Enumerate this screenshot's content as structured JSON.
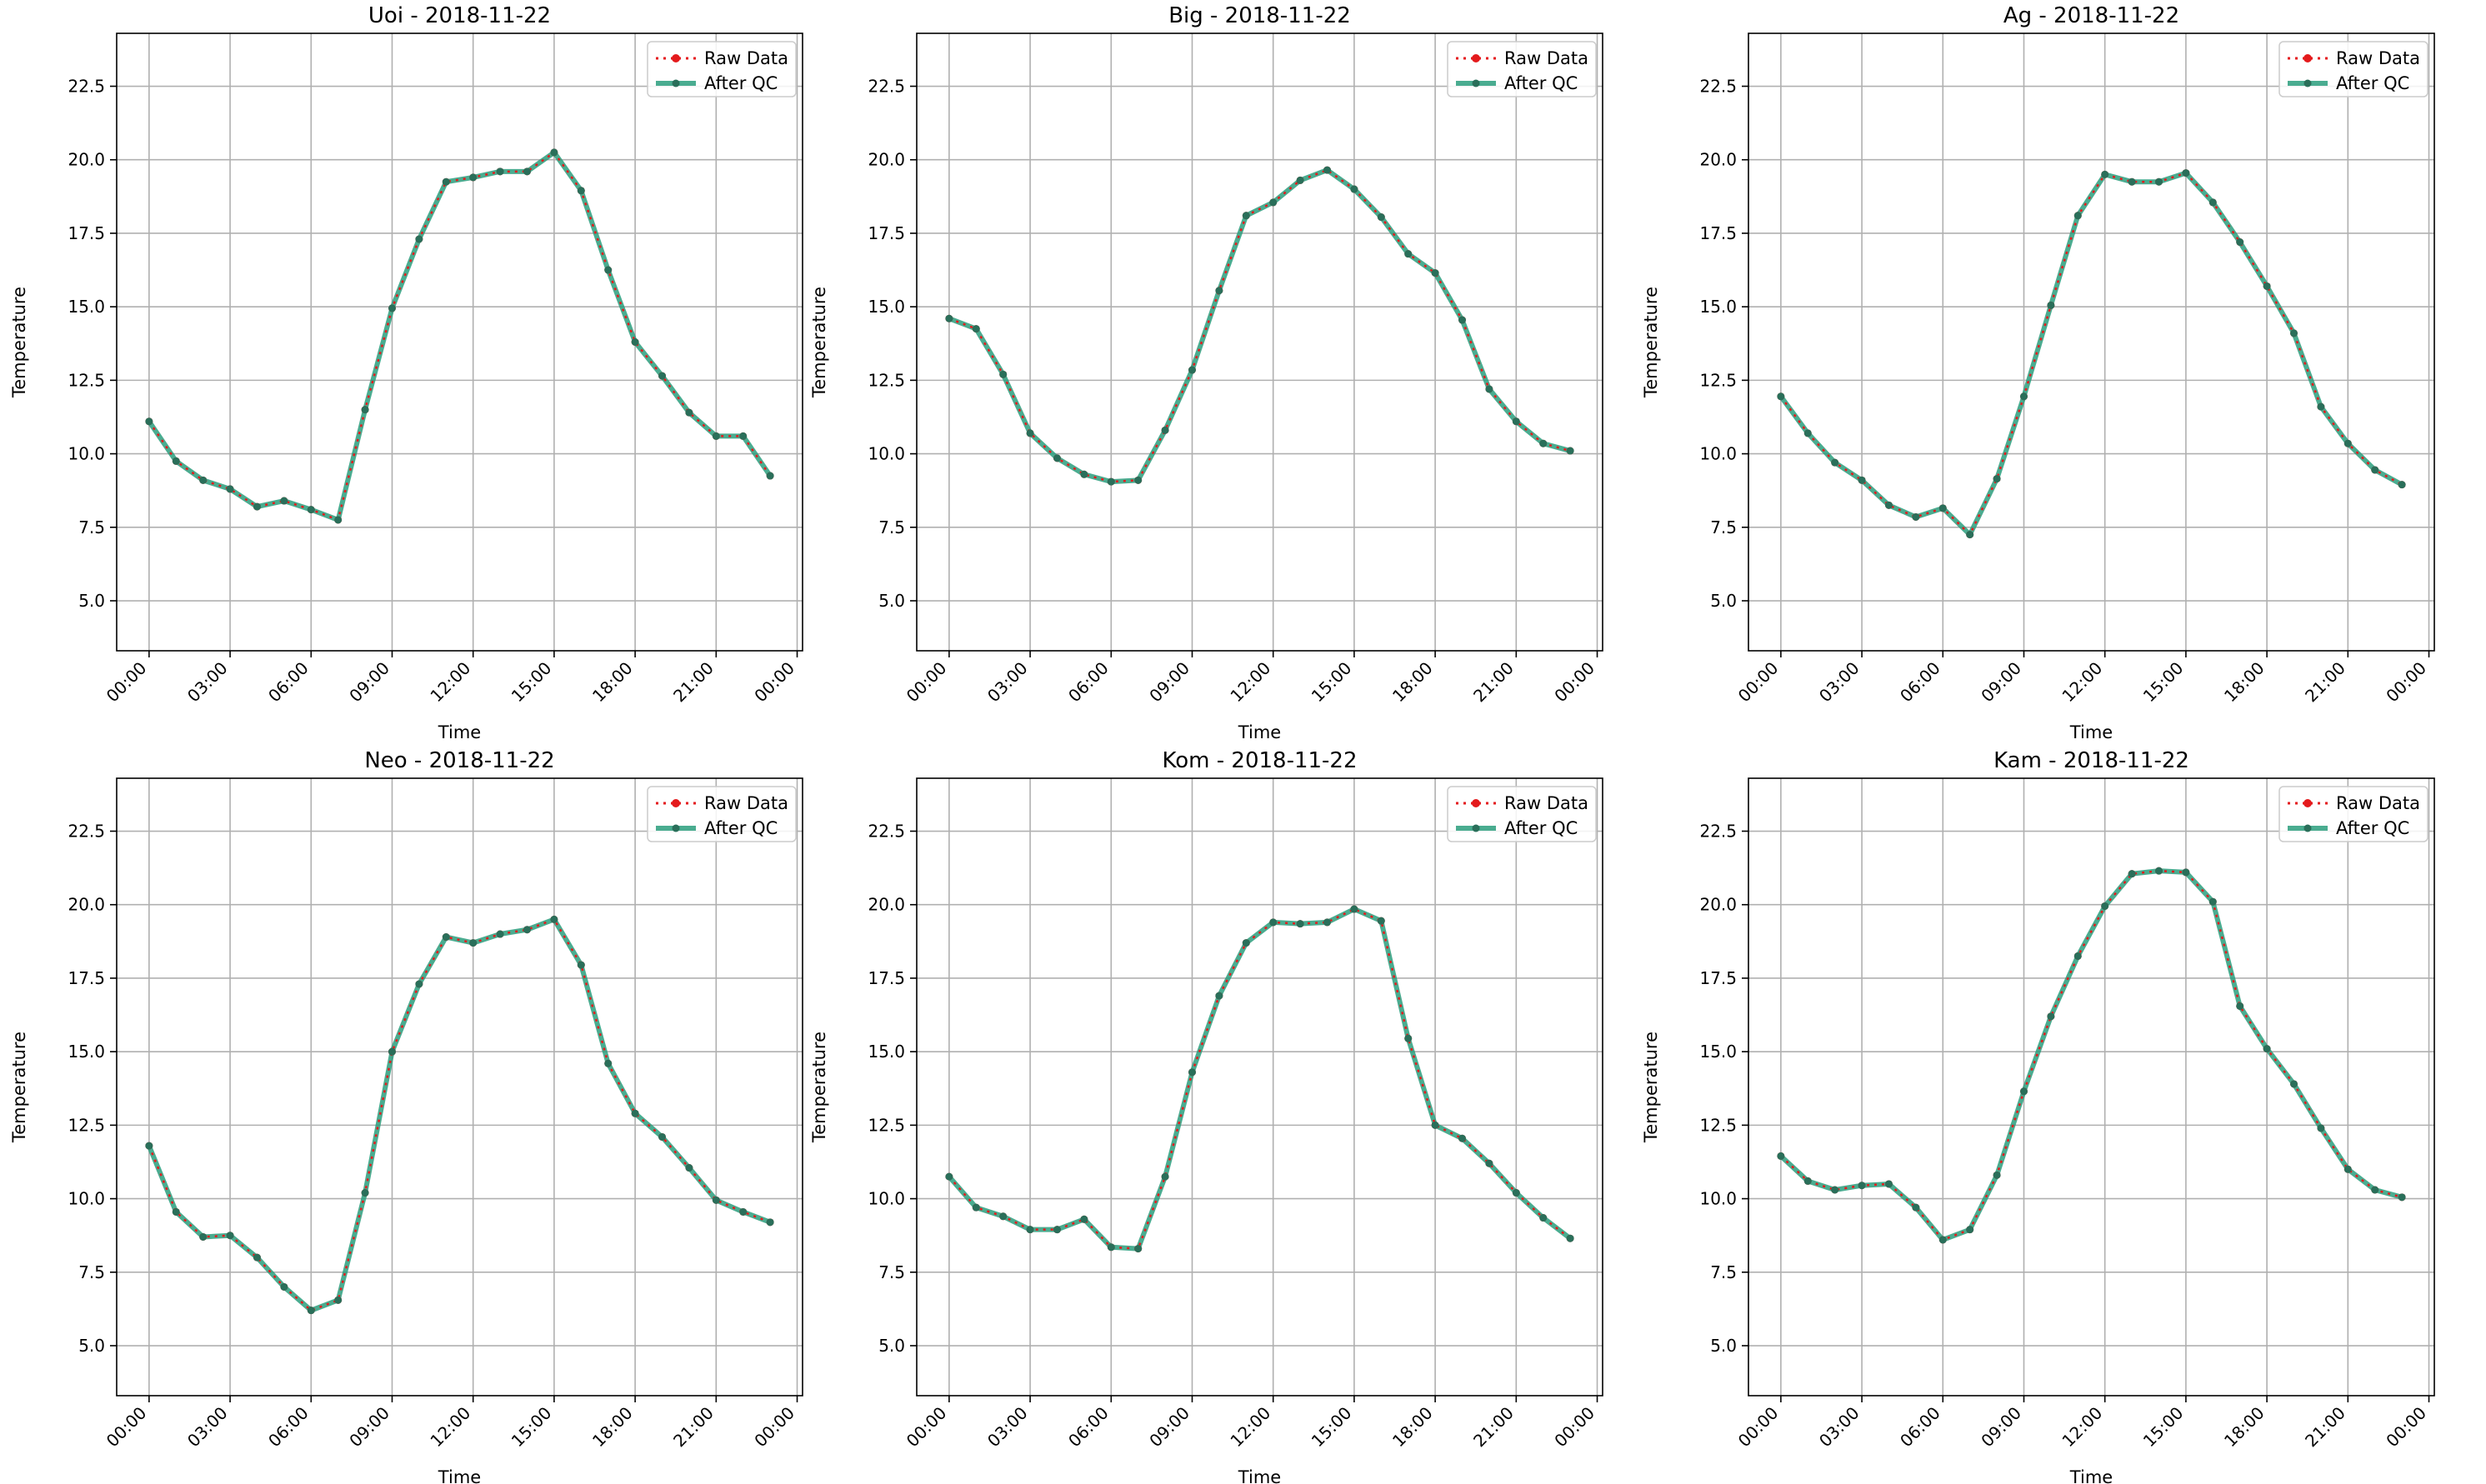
{
  "chart_data": [
    {
      "type": "line",
      "title": "Uoi - 2018-11-22",
      "xlabel": "Time",
      "ylabel": "Temperature",
      "x_ticks": [
        "00:00",
        "03:00",
        "06:00",
        "09:00",
        "12:00",
        "15:00",
        "18:00",
        "21:00",
        "00:00"
      ],
      "y_ticks": [
        "5.0",
        "7.5",
        "10.0",
        "12.5",
        "15.0",
        "17.5",
        "20.0",
        "22.5"
      ],
      "ylim": [
        3.3,
        24.3
      ],
      "xlim": [
        -1.2,
        24.2
      ],
      "grid": true,
      "legend": "upper-right",
      "x_hours": [
        0,
        1,
        2,
        3,
        4,
        5,
        6,
        7,
        8,
        9,
        10,
        11,
        12,
        13,
        14,
        15,
        16,
        17,
        18,
        19,
        20,
        21,
        22,
        23
      ],
      "series": [
        {
          "name": "Raw Data",
          "values": [
            11.1,
            9.75,
            9.1,
            8.8,
            8.2,
            8.4,
            8.1,
            7.75,
            11.5,
            14.95,
            17.3,
            19.25,
            19.4,
            19.6,
            19.6,
            20.25,
            18.95,
            16.25,
            13.8,
            12.65,
            11.4,
            10.6,
            10.6,
            9.25
          ]
        },
        {
          "name": "After QC",
          "values": [
            11.1,
            9.75,
            9.1,
            8.8,
            8.2,
            8.4,
            8.1,
            7.75,
            11.5,
            14.95,
            17.3,
            19.25,
            19.4,
            19.6,
            19.6,
            20.25,
            18.95,
            16.25,
            13.8,
            12.65,
            11.4,
            10.6,
            10.6,
            9.25
          ]
        }
      ]
    },
    {
      "type": "line",
      "title": "Big - 2018-11-22",
      "xlabel": "Time",
      "ylabel": "Temperature",
      "x_ticks": [
        "00:00",
        "03:00",
        "06:00",
        "09:00",
        "12:00",
        "15:00",
        "18:00",
        "21:00",
        "00:00"
      ],
      "y_ticks": [
        "5.0",
        "7.5",
        "10.0",
        "12.5",
        "15.0",
        "17.5",
        "20.0",
        "22.5"
      ],
      "ylim": [
        3.3,
        24.3
      ],
      "xlim": [
        -1.2,
        24.2
      ],
      "grid": true,
      "legend": "upper-right",
      "x_hours": [
        0,
        1,
        2,
        3,
        4,
        5,
        6,
        7,
        8,
        9,
        10,
        11,
        12,
        13,
        14,
        15,
        16,
        17,
        18,
        19,
        20,
        21,
        22,
        23
      ],
      "series": [
        {
          "name": "Raw Data",
          "values": [
            14.6,
            14.25,
            12.7,
            10.7,
            9.85,
            9.3,
            9.05,
            9.1,
            10.8,
            12.85,
            15.55,
            18.1,
            18.55,
            19.3,
            19.65,
            19.0,
            18.05,
            16.8,
            16.15,
            14.55,
            12.2,
            11.1,
            10.35,
            10.1
          ]
        },
        {
          "name": "After QC",
          "values": [
            14.6,
            14.25,
            12.7,
            10.7,
            9.85,
            9.3,
            9.05,
            9.1,
            10.8,
            12.85,
            15.55,
            18.1,
            18.55,
            19.3,
            19.65,
            19.0,
            18.05,
            16.8,
            16.15,
            14.55,
            12.2,
            11.1,
            10.35,
            10.1
          ]
        }
      ]
    },
    {
      "type": "line",
      "title": "Ag - 2018-11-22",
      "xlabel": "Time",
      "ylabel": "Temperature",
      "x_ticks": [
        "00:00",
        "03:00",
        "06:00",
        "09:00",
        "12:00",
        "15:00",
        "18:00",
        "21:00",
        "00:00"
      ],
      "y_ticks": [
        "5.0",
        "7.5",
        "10.0",
        "12.5",
        "15.0",
        "17.5",
        "20.0",
        "22.5"
      ],
      "ylim": [
        3.3,
        24.3
      ],
      "xlim": [
        -1.2,
        24.2
      ],
      "grid": true,
      "legend": "upper-right",
      "x_hours": [
        0,
        1,
        2,
        3,
        4,
        5,
        6,
        7,
        8,
        9,
        10,
        11,
        12,
        13,
        14,
        15,
        16,
        17,
        18,
        19,
        20,
        21,
        22,
        23
      ],
      "series": [
        {
          "name": "Raw Data",
          "values": [
            11.95,
            10.7,
            9.7,
            9.1,
            8.25,
            7.85,
            8.15,
            7.25,
            9.15,
            11.95,
            15.05,
            18.1,
            19.5,
            19.25,
            19.25,
            19.55,
            18.55,
            17.2,
            15.7,
            14.1,
            11.6,
            10.35,
            9.45,
            8.95
          ]
        },
        {
          "name": "After QC",
          "values": [
            11.95,
            10.7,
            9.7,
            9.1,
            8.25,
            7.85,
            8.15,
            7.25,
            9.15,
            11.95,
            15.05,
            18.1,
            19.5,
            19.25,
            19.25,
            19.55,
            18.55,
            17.2,
            15.7,
            14.1,
            11.6,
            10.35,
            9.45,
            8.95
          ]
        }
      ]
    },
    {
      "type": "line",
      "title": "Neo - 2018-11-22",
      "xlabel": "Time",
      "ylabel": "Temperature",
      "x_ticks": [
        "00:00",
        "03:00",
        "06:00",
        "09:00",
        "12:00",
        "15:00",
        "18:00",
        "21:00",
        "00:00"
      ],
      "y_ticks": [
        "5.0",
        "7.5",
        "10.0",
        "12.5",
        "15.0",
        "17.5",
        "20.0",
        "22.5"
      ],
      "ylim": [
        3.3,
        24.3
      ],
      "xlim": [
        -1.2,
        24.2
      ],
      "grid": true,
      "legend": "upper-right",
      "x_hours": [
        0,
        1,
        2,
        3,
        4,
        5,
        6,
        7,
        8,
        9,
        10,
        11,
        12,
        13,
        14,
        15,
        16,
        17,
        18,
        19,
        20,
        21,
        22,
        23
      ],
      "series": [
        {
          "name": "Raw Data",
          "values": [
            11.8,
            9.55,
            8.7,
            8.75,
            8.0,
            7.0,
            6.2,
            6.55,
            10.2,
            15.0,
            17.3,
            18.9,
            18.7,
            19.0,
            19.15,
            19.5,
            17.95,
            14.6,
            12.9,
            12.1,
            11.05,
            9.95,
            9.55,
            9.2
          ]
        },
        {
          "name": "After QC",
          "values": [
            11.8,
            9.55,
            8.7,
            8.75,
            8.0,
            7.0,
            6.2,
            6.55,
            10.2,
            15.0,
            17.3,
            18.9,
            18.7,
            19.0,
            19.15,
            19.5,
            17.95,
            14.6,
            12.9,
            12.1,
            11.05,
            9.95,
            9.55,
            9.2
          ]
        }
      ]
    },
    {
      "type": "line",
      "title": "Kom - 2018-11-22",
      "xlabel": "Time",
      "ylabel": "Temperature",
      "x_ticks": [
        "00:00",
        "03:00",
        "06:00",
        "09:00",
        "12:00",
        "15:00",
        "18:00",
        "21:00",
        "00:00"
      ],
      "y_ticks": [
        "5.0",
        "7.5",
        "10.0",
        "12.5",
        "15.0",
        "17.5",
        "20.0",
        "22.5"
      ],
      "ylim": [
        3.3,
        24.3
      ],
      "xlim": [
        -1.2,
        24.2
      ],
      "grid": true,
      "legend": "upper-right",
      "x_hours": [
        0,
        1,
        2,
        3,
        4,
        5,
        6,
        7,
        8,
        9,
        10,
        11,
        12,
        13,
        14,
        15,
        16,
        17,
        18,
        19,
        20,
        21,
        22,
        23
      ],
      "series": [
        {
          "name": "Raw Data",
          "values": [
            10.75,
            9.7,
            9.4,
            8.95,
            8.95,
            9.3,
            8.35,
            8.3,
            10.75,
            14.3,
            16.9,
            18.7,
            19.4,
            19.35,
            19.4,
            19.85,
            19.45,
            15.45,
            12.5,
            12.05,
            11.2,
            10.2,
            9.35,
            8.65
          ]
        },
        {
          "name": "After QC",
          "values": [
            10.75,
            9.7,
            9.4,
            8.95,
            8.95,
            9.3,
            8.35,
            8.3,
            10.75,
            14.3,
            16.9,
            18.7,
            19.4,
            19.35,
            19.4,
            19.85,
            19.45,
            15.45,
            12.5,
            12.05,
            11.2,
            10.2,
            9.35,
            8.65
          ]
        }
      ]
    },
    {
      "type": "line",
      "title": "Kam - 2018-11-22",
      "xlabel": "Time",
      "ylabel": "Temperature",
      "x_ticks": [
        "00:00",
        "03:00",
        "06:00",
        "09:00",
        "12:00",
        "15:00",
        "18:00",
        "21:00",
        "00:00"
      ],
      "y_ticks": [
        "5.0",
        "7.5",
        "10.0",
        "12.5",
        "15.0",
        "17.5",
        "20.0",
        "22.5"
      ],
      "ylim": [
        3.3,
        24.3
      ],
      "xlim": [
        -1.2,
        24.2
      ],
      "grid": true,
      "legend": "upper-right",
      "x_hours": [
        0,
        1,
        2,
        3,
        4,
        5,
        6,
        7,
        8,
        9,
        10,
        11,
        12,
        13,
        14,
        15,
        16,
        17,
        18,
        19,
        20,
        21,
        22,
        23
      ],
      "series": [
        {
          "name": "Raw Data",
          "values": [
            11.45,
            10.6,
            10.3,
            10.45,
            10.5,
            9.7,
            8.6,
            8.95,
            10.8,
            13.65,
            16.2,
            18.25,
            19.95,
            21.05,
            21.15,
            21.1,
            20.1,
            16.55,
            15.1,
            13.9,
            12.4,
            11.0,
            10.3,
            10.05
          ]
        },
        {
          "name": "After QC",
          "values": [
            11.45,
            10.6,
            10.3,
            10.45,
            10.5,
            9.7,
            8.6,
            8.95,
            10.8,
            13.65,
            16.2,
            18.25,
            19.95,
            21.05,
            21.15,
            21.1,
            20.1,
            16.55,
            15.1,
            13.9,
            12.4,
            11.0,
            10.3,
            10.05
          ]
        }
      ]
    }
  ],
  "colors": {
    "raw": "#e41a1c",
    "qc": "#2a9d7c",
    "qc_marker": "#2a6f5a",
    "grid": "#b0b0b0"
  }
}
